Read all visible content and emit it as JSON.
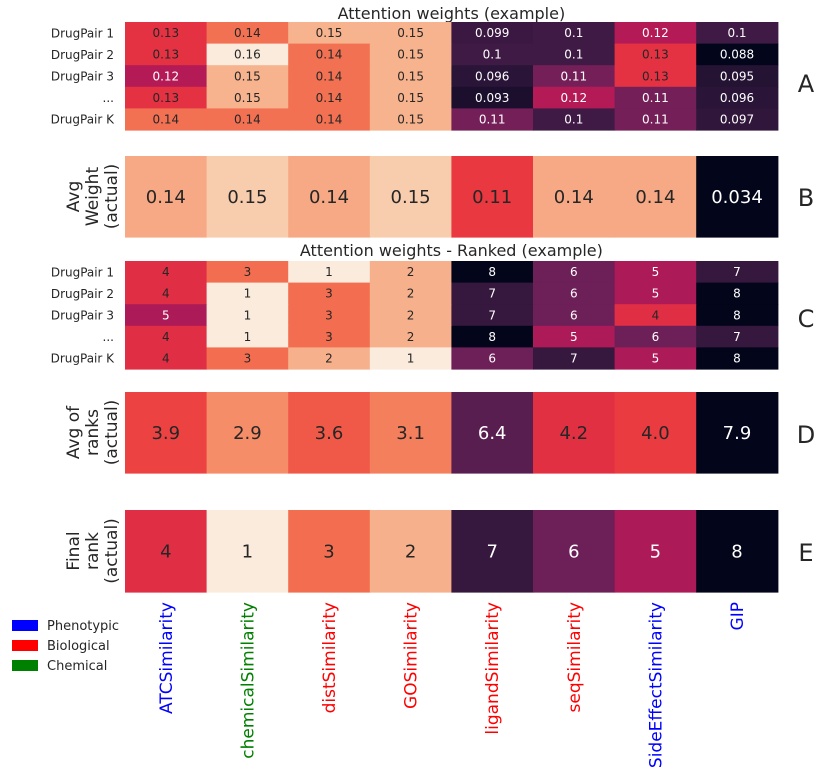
{
  "features": [
    {
      "name": "ATCSimilarity",
      "category": "Phenotypic"
    },
    {
      "name": "chemicalSimilarity",
      "category": "Chemical"
    },
    {
      "name": "distSimilarity",
      "category": "Biological"
    },
    {
      "name": "GOSimilarity",
      "category": "Biological"
    },
    {
      "name": "ligandSimilarity",
      "category": "Biological"
    },
    {
      "name": "seqSimilarity",
      "category": "Biological"
    },
    {
      "name": "SideEffectSimilarity",
      "category": "Phenotypic"
    },
    {
      "name": "GIP",
      "category": "Phenotypic"
    }
  ],
  "legend": [
    {
      "label": "Phenotypic",
      "color": "#0000ff"
    },
    {
      "label": "Biological",
      "color": "#ff0000"
    },
    {
      "label": "Chemical",
      "color": "#008000"
    }
  ],
  "chart_data": [
    {
      "id": "A",
      "panel_label": "A",
      "type": "heatmap",
      "title": "Attention weights (example)",
      "ylabel": "",
      "rows": [
        "DrugPair 1",
        "DrugPair 2",
        "DrugPair 3",
        "...",
        "DrugPair K"
      ],
      "values": [
        [
          0.13,
          0.14,
          0.15,
          0.15,
          0.099,
          0.1,
          0.12,
          0.1
        ],
        [
          0.13,
          0.16,
          0.14,
          0.15,
          0.1,
          0.1,
          0.13,
          0.088
        ],
        [
          0.12,
          0.15,
          0.14,
          0.15,
          0.096,
          0.11,
          0.13,
          0.095
        ],
        [
          0.13,
          0.15,
          0.14,
          0.15,
          0.093,
          0.12,
          0.11,
          0.096
        ],
        [
          0.14,
          0.14,
          0.14,
          0.15,
          0.11,
          0.1,
          0.11,
          0.097
        ]
      ],
      "labels": [
        [
          "0.13",
          "0.14",
          "0.15",
          "0.15",
          "0.099",
          "0.1",
          "0.12",
          "0.1"
        ],
        [
          "0.13",
          "0.16",
          "0.14",
          "0.15",
          "0.1",
          "0.1",
          "0.13",
          "0.088"
        ],
        [
          "0.12",
          "0.15",
          "0.14",
          "0.15",
          "0.096",
          "0.11",
          "0.13",
          "0.095"
        ],
        [
          "0.13",
          "0.15",
          "0.14",
          "0.15",
          "0.093",
          "0.12",
          "0.11",
          "0.096"
        ],
        [
          "0.14",
          "0.14",
          "0.14",
          "0.15",
          "0.11",
          "0.1",
          "0.11",
          "0.097"
        ]
      ],
      "color_scale": {
        "min": 0.088,
        "max": 0.16,
        "reversed": false
      }
    },
    {
      "id": "B",
      "panel_label": "B",
      "type": "heatmap",
      "title": "",
      "ylabel": [
        "Avg",
        "Weight",
        "(actual)"
      ],
      "rows": [],
      "values": [
        [
          0.14,
          0.15,
          0.14,
          0.15,
          0.11,
          0.14,
          0.14,
          0.034
        ]
      ],
      "labels": [
        [
          "0.14",
          "0.15",
          "0.14",
          "0.15",
          "0.11",
          "0.14",
          "0.14",
          "0.034"
        ]
      ],
      "color_scale": {
        "min": 0.034,
        "max": 0.16,
        "reversed": false
      }
    },
    {
      "id": "C",
      "panel_label": "C",
      "type": "heatmap",
      "title": "Attention weights - Ranked (example)",
      "ylabel": "",
      "rows": [
        "DrugPair 1",
        "DrugPair 2",
        "DrugPair 3",
        "...",
        "DrugPair K"
      ],
      "values": [
        [
          4,
          3,
          1,
          2,
          8,
          6,
          5,
          7
        ],
        [
          4,
          1,
          3,
          2,
          7,
          6,
          5,
          8
        ],
        [
          5,
          1,
          3,
          2,
          7,
          6,
          4,
          8
        ],
        [
          4,
          1,
          3,
          2,
          8,
          5,
          6,
          7
        ],
        [
          4,
          3,
          2,
          1,
          6,
          7,
          5,
          8
        ]
      ],
      "labels": [
        [
          "4",
          "3",
          "1",
          "2",
          "8",
          "6",
          "5",
          "7"
        ],
        [
          "4",
          "1",
          "3",
          "2",
          "7",
          "6",
          "5",
          "8"
        ],
        [
          "5",
          "1",
          "3",
          "2",
          "7",
          "6",
          "4",
          "8"
        ],
        [
          "4",
          "1",
          "3",
          "2",
          "8",
          "5",
          "6",
          "7"
        ],
        [
          "4",
          "3",
          "2",
          "1",
          "6",
          "7",
          "5",
          "8"
        ]
      ],
      "color_scale": {
        "min": 1,
        "max": 8,
        "reversed": true
      }
    },
    {
      "id": "D",
      "panel_label": "D",
      "type": "heatmap",
      "title": "",
      "ylabel": [
        "Avg of",
        "ranks",
        "(actual)"
      ],
      "rows": [],
      "values": [
        [
          3.9,
          2.9,
          3.6,
          3.1,
          6.4,
          4.2,
          4.0,
          7.9
        ]
      ],
      "labels": [
        [
          "3.9",
          "2.9",
          "3.6",
          "3.1",
          "6.4",
          "4.2",
          "4.0",
          "7.9"
        ]
      ],
      "color_scale": {
        "min": 1.5,
        "max": 7.9,
        "reversed": true
      }
    },
    {
      "id": "E",
      "panel_label": "E",
      "type": "heatmap",
      "title": "",
      "ylabel": [
        "Final",
        "rank",
        "(actual)"
      ],
      "rows": [],
      "values": [
        [
          4,
          1,
          3,
          2,
          7,
          6,
          5,
          8
        ]
      ],
      "labels": [
        [
          "4",
          "1",
          "3",
          "2",
          "7",
          "6",
          "5",
          "8"
        ]
      ],
      "color_scale": {
        "min": 1,
        "max": 8,
        "reversed": true
      }
    }
  ]
}
